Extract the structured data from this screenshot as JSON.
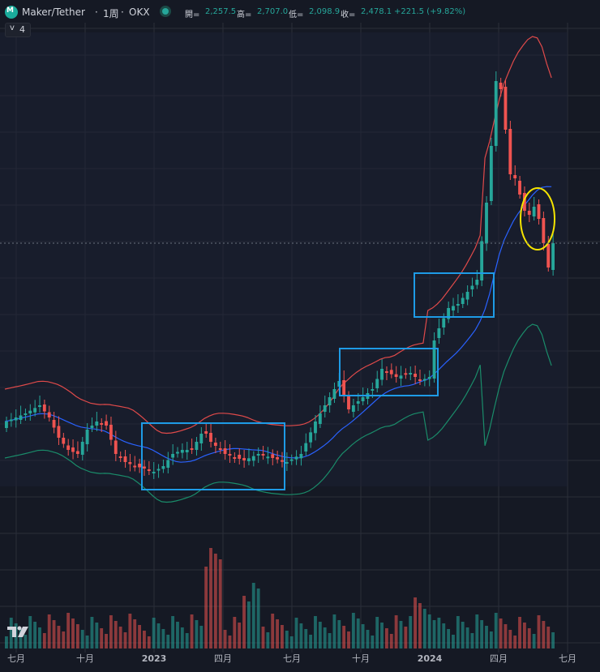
{
  "header": {
    "symbol": "Maker/Tether",
    "separator1": "·",
    "interval": "1周",
    "separator2": "·",
    "exchange": "OKX",
    "ohlc": {
      "open_label": "開=",
      "open": "2,257.5",
      "high_label": "高=",
      "high": "2,707.0",
      "low_label": "低=",
      "low": "2,098.9",
      "close_label": "收=",
      "close": "2,478.1",
      "change": "+221.5 (+9.82%)"
    }
  },
  "indicator_toggle": {
    "chevron": "v",
    "count": "4"
  },
  "colors": {
    "background": "#151924",
    "grid": "#2a2e39",
    "up": "#26a69a",
    "down": "#ef5350",
    "upper_band": "#e04a4a",
    "middle_band": "#2962ff",
    "lower_band": "#1a8c6a",
    "annotation_box": "#1e9be6",
    "annotation_ellipse": "#f5e400"
  },
  "chart_data": {
    "type": "candlestick",
    "title": "Maker/Tether · 1周 · OKX",
    "x_tick_labels": [
      "七月",
      "十月",
      "2023",
      "四月",
      "七月",
      "十月",
      "2024",
      "四月",
      "七月"
    ],
    "x_range": [
      "2022-07",
      "2024-07"
    ],
    "price_axis_shown": false,
    "last_close": 2478.1,
    "series": [
      {
        "name": "price",
        "kind": "ohlc",
        "approx_shape": "gradual rise from ~2022 lows, basing through 2023 H1, uptrend into 2024 peak then pullback"
      },
      {
        "name": "volume",
        "kind": "bar"
      },
      {
        "name": "bollinger_upper"
      },
      {
        "name": "bollinger_middle"
      },
      {
        "name": "bollinger_lower"
      }
    ],
    "annotations": [
      {
        "shape": "rectangle",
        "color": "#1e9be6",
        "period": "2023-01 to 2023-06"
      },
      {
        "shape": "rectangle",
        "color": "#1e9be6",
        "period": "2023-09 to 2023-12"
      },
      {
        "shape": "rectangle",
        "color": "#1e9be6",
        "period": "2024-01 to 2024-03"
      },
      {
        "shape": "ellipse",
        "color": "#f5e400",
        "period": "2024-05 to 2024-06"
      }
    ]
  }
}
